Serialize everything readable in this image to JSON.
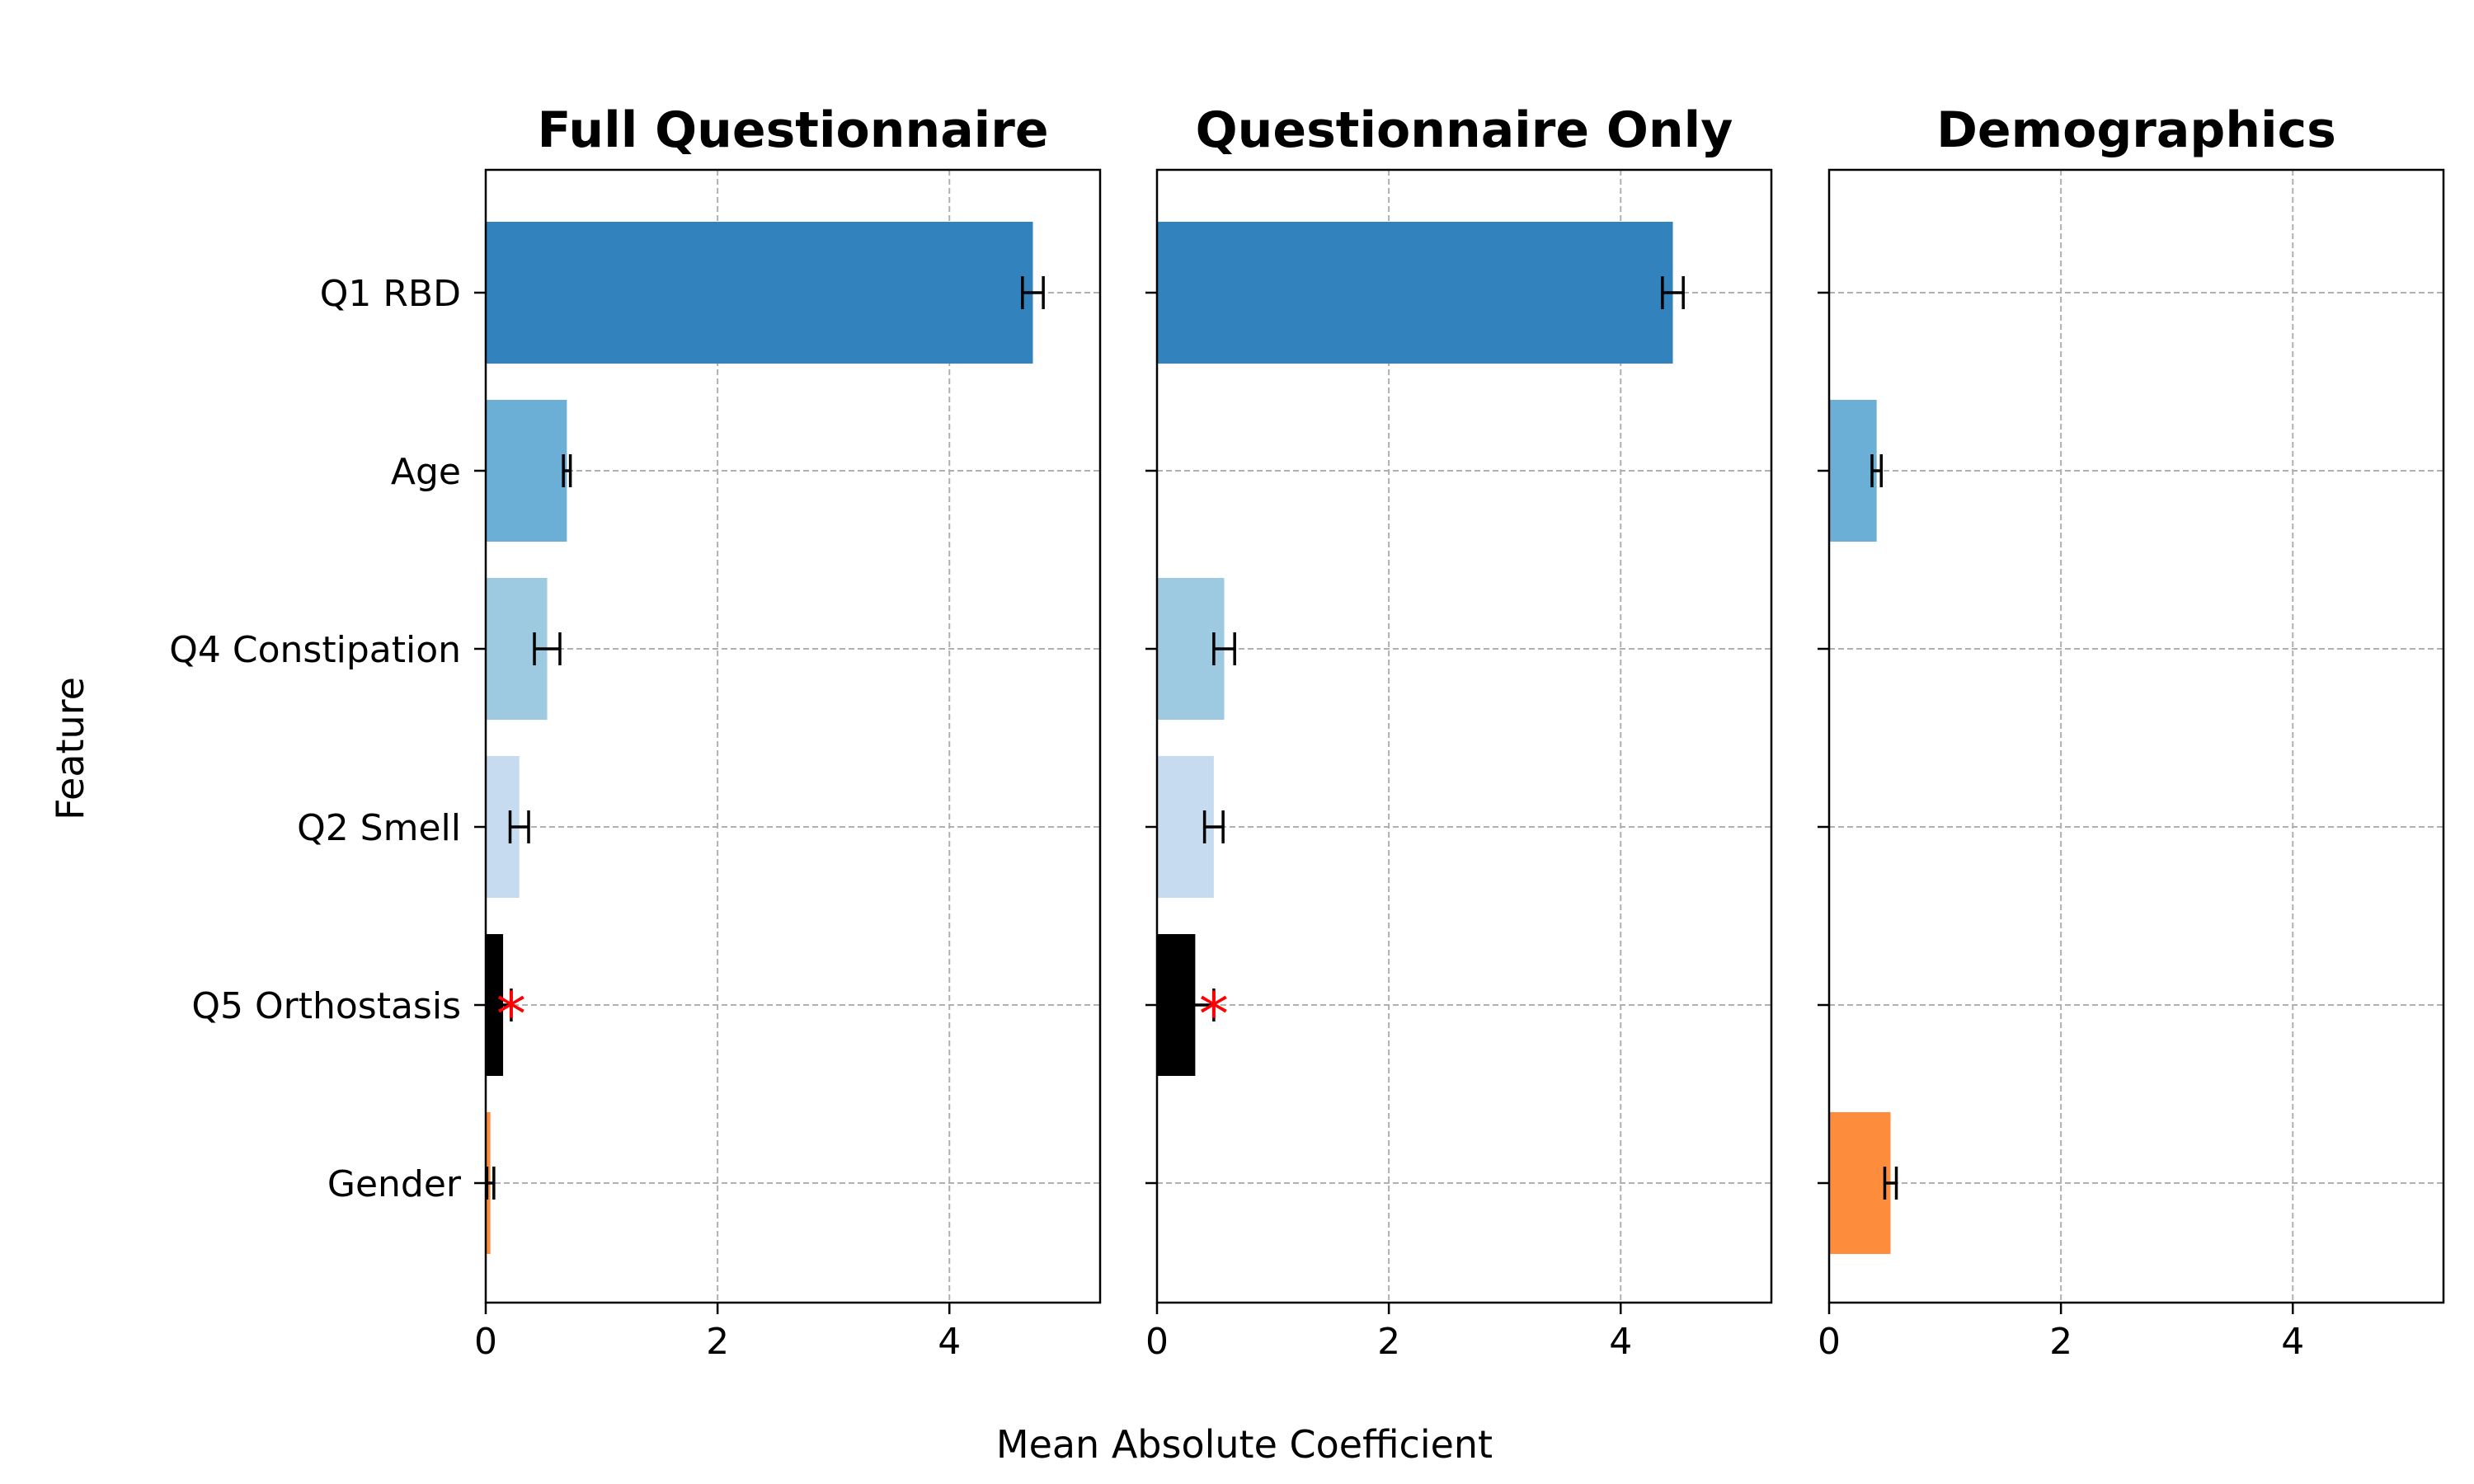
{
  "chart_data": {
    "type": "bar",
    "orientation": "horizontal",
    "ylabel": "Feature",
    "xlabel": "Mean Absolute Coefficient",
    "categories": [
      "Q1 RBD",
      "Age",
      "Q4 Constipation",
      "Q2 Smell",
      "Q5 Orthostasis",
      "Gender"
    ],
    "xlim": [
      0,
      5.3
    ],
    "xticks": [
      0,
      2,
      4
    ],
    "grid": true,
    "colors": {
      "Q1 RBD": "#3182bd",
      "Age": "#6baed6",
      "Q4 Constipation": "#9ecae1",
      "Q2 Smell": "#c6dbef",
      "Q5 Orthostasis": "#000000",
      "Gender": "#fd8d3c"
    },
    "marker_color": "#ff0000",
    "panels": [
      {
        "title": "Full Questionnaire",
        "bars": [
          {
            "category": "Q1 RBD",
            "value": 4.72,
            "error": 0.09
          },
          {
            "category": "Age",
            "value": 0.7,
            "error": 0.03
          },
          {
            "category": "Q4 Constipation",
            "value": 0.53,
            "error": 0.11
          },
          {
            "category": "Q2 Smell",
            "value": 0.29,
            "error": 0.08
          },
          {
            "category": "Q5 Orthostasis",
            "value": 0.15,
            "error": 0.07,
            "marker": "*"
          },
          {
            "category": "Gender",
            "value": 0.04,
            "error": 0.03
          }
        ]
      },
      {
        "title": "Questionnaire Only",
        "bars": [
          {
            "category": "Q1 RBD",
            "value": 4.45,
            "error": 0.09
          },
          {
            "category": "Q4 Constipation",
            "value": 0.58,
            "error": 0.09
          },
          {
            "category": "Q2 Smell",
            "value": 0.49,
            "error": 0.08
          },
          {
            "category": "Q5 Orthostasis",
            "value": 0.33,
            "error": 0.16,
            "marker": "*"
          }
        ]
      },
      {
        "title": "Demographics",
        "bars": [
          {
            "category": "Age",
            "value": 0.41,
            "error": 0.04
          },
          {
            "category": "Gender",
            "value": 0.53,
            "error": 0.05
          }
        ]
      }
    ]
  }
}
